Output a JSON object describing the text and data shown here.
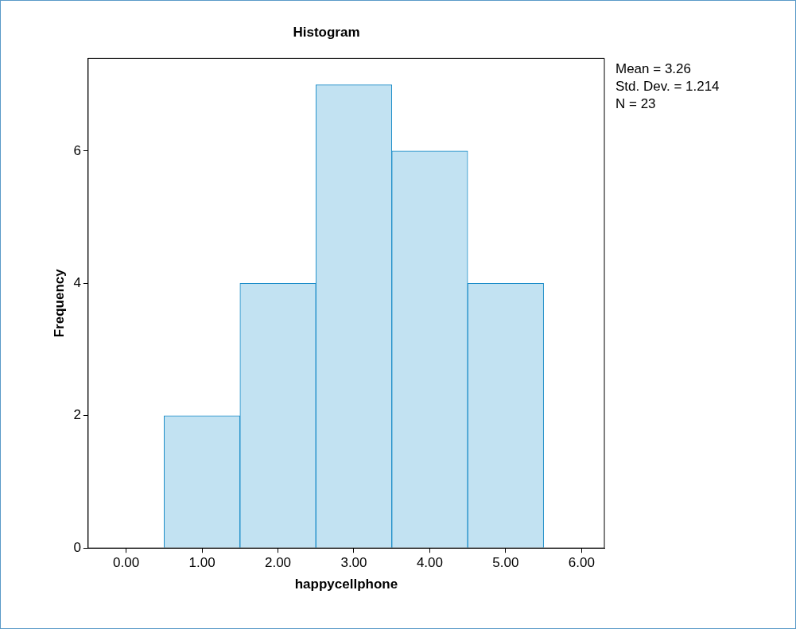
{
  "chart_data": {
    "type": "histogram",
    "title": "Histogram",
    "xlabel": "happycellphone",
    "ylabel": "Frequency",
    "bins": [
      0.5,
      1.5,
      2.5,
      3.5,
      4.5,
      5.5
    ],
    "values": [
      2,
      4,
      7,
      6,
      4
    ],
    "color": "#c2e2f2",
    "xlim": [
      -0.5,
      6.3
    ],
    "ylim": [
      0,
      7.4
    ],
    "xticks": [
      {
        "value": 0,
        "label": "0.00"
      },
      {
        "value": 1,
        "label": "1.00"
      },
      {
        "value": 2,
        "label": "2.00"
      },
      {
        "value": 3,
        "label": "3.00"
      },
      {
        "value": 4,
        "label": "4.00"
      },
      {
        "value": 5,
        "label": "5.00"
      },
      {
        "value": 6,
        "label": "6.00"
      }
    ],
    "yticks": [
      0,
      2,
      4,
      6
    ],
    "grid": false,
    "legend": false,
    "annotations": [
      "Mean = 3.26",
      "Std. Dev. = 1.214",
      "N = 23"
    ]
  }
}
